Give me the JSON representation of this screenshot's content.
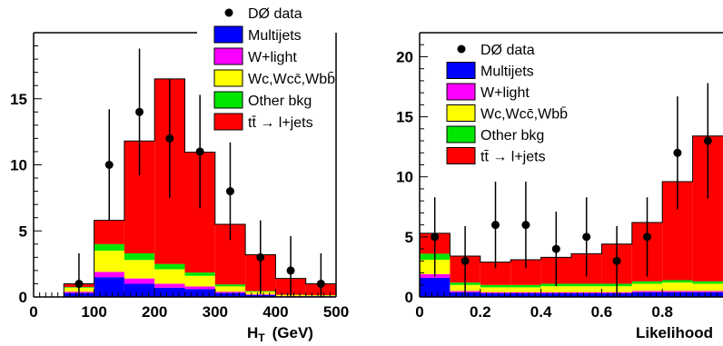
{
  "legend_entries": [
    {
      "key": "data",
      "label": "DØ data"
    },
    {
      "key": "multijets",
      "label": "Multijets",
      "color": "#0000ff"
    },
    {
      "key": "wlight",
      "label": "W+light",
      "color": "#ff00ff"
    },
    {
      "key": "wc",
      "label": "Wc,Wcc̄,Wbb̄",
      "color": "#ffff00"
    },
    {
      "key": "other",
      "label": "Other bkg",
      "color": "#00e600"
    },
    {
      "key": "ttbar",
      "label": "tt̄ → l+jets",
      "color": "#ff0000"
    }
  ],
  "chart_data": [
    {
      "type": "stacked-histogram",
      "xlabel": "H",
      "xlabel_sub": "T",
      "xlabel_unit": "(GeV)",
      "xlim": [
        0,
        500
      ],
      "ylim": [
        0,
        20
      ],
      "xticks": [
        0,
        100,
        200,
        300,
        400,
        500
      ],
      "yticks": [
        0,
        5,
        10,
        15
      ],
      "bin_edges": [
        50,
        100,
        150,
        200,
        250,
        300,
        350,
        400,
        450,
        500
      ],
      "stack": [
        {
          "key": "multijets",
          "values": [
            0.3,
            1.5,
            1.0,
            0.7,
            0.6,
            0.3,
            0.15,
            0.05,
            0.05
          ]
        },
        {
          "key": "wlight",
          "values": [
            0.1,
            0.4,
            0.4,
            0.3,
            0.2,
            0.1,
            0.05,
            0.02,
            0.02
          ]
        },
        {
          "key": "wc",
          "values": [
            0.3,
            1.6,
            1.4,
            1.1,
            0.8,
            0.4,
            0.2,
            0.08,
            0.05
          ]
        },
        {
          "key": "other",
          "values": [
            0.05,
            0.5,
            0.5,
            0.4,
            0.25,
            0.15,
            0.05,
            0.02,
            0.02
          ]
        },
        {
          "key": "ttbar",
          "values": [
            0.25,
            1.8,
            8.5,
            14.0,
            9.1,
            4.55,
            2.75,
            1.23,
            0.86
          ]
        }
      ],
      "data_points": {
        "x": [
          75,
          125,
          175,
          225,
          275,
          325,
          375,
          425,
          475
        ],
        "y": [
          1,
          10,
          14,
          12,
          11,
          8,
          3,
          2,
          1
        ],
        "err": [
          2.3,
          4.2,
          4.8,
          4.5,
          4.3,
          3.7,
          2.8,
          2.6,
          2.3
        ]
      },
      "legend": "top-right"
    },
    {
      "type": "stacked-histogram",
      "xlabel": "Likelihood",
      "xlim": [
        0,
        1
      ],
      "ylim": [
        0,
        22
      ],
      "xticks": [
        0,
        0.2,
        0.4,
        0.6,
        0.8
      ],
      "xtick_labels": [
        "0",
        "0.2",
        "0.4",
        "0.6",
        "0.8"
      ],
      "yticks": [
        0,
        5,
        10,
        15,
        20
      ],
      "bin_edges": [
        0,
        0.1,
        0.2,
        0.3,
        0.4,
        0.5,
        0.6,
        0.7,
        0.8,
        0.9,
        1.0
      ],
      "stack": [
        {
          "key": "multijets",
          "values": [
            1.6,
            0.4,
            0.3,
            0.3,
            0.3,
            0.3,
            0.3,
            0.4,
            0.4,
            0.4
          ]
        },
        {
          "key": "wlight",
          "values": [
            0.3,
            0.1,
            0.1,
            0.1,
            0.1,
            0.1,
            0.1,
            0.1,
            0.1,
            0.1
          ]
        },
        {
          "key": "wc",
          "values": [
            1.2,
            0.5,
            0.4,
            0.4,
            0.5,
            0.5,
            0.5,
            0.6,
            0.7,
            0.6
          ]
        },
        {
          "key": "other",
          "values": [
            0.5,
            0.2,
            0.2,
            0.2,
            0.2,
            0.2,
            0.2,
            0.2,
            0.2,
            0.2
          ]
        },
        {
          "key": "ttbar",
          "values": [
            1.7,
            2.2,
            1.9,
            2.1,
            2.2,
            2.5,
            3.3,
            4.9,
            8.2,
            12.1
          ]
        }
      ],
      "data_points": {
        "x": [
          0.05,
          0.15,
          0.25,
          0.35,
          0.45,
          0.55,
          0.65,
          0.75,
          0.85,
          0.95
        ],
        "y": [
          5,
          3,
          6,
          6,
          4,
          5,
          3,
          5,
          12,
          13
        ],
        "err": [
          3.3,
          2.9,
          3.6,
          3.6,
          3.1,
          3.3,
          2.9,
          3.3,
          4.7,
          4.8
        ]
      },
      "legend": "top-left"
    }
  ]
}
